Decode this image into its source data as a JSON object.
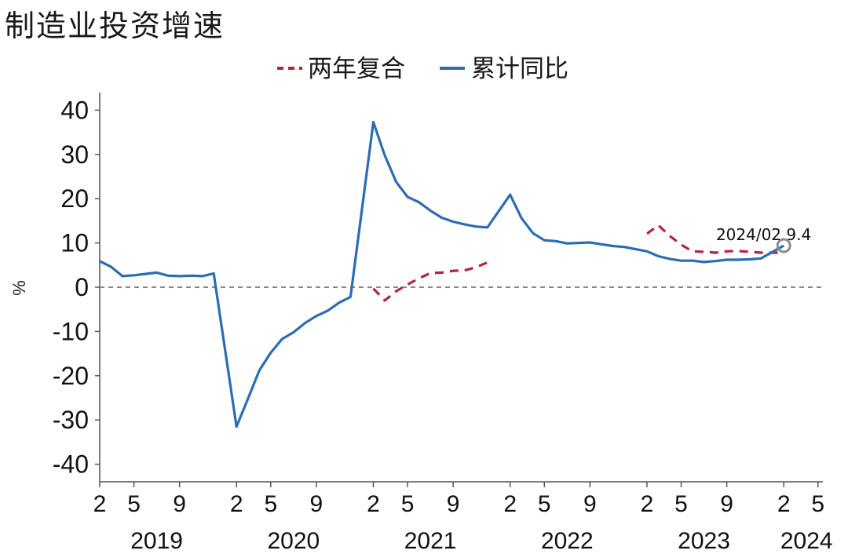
{
  "title": "制造业投资增速",
  "chart_data": {
    "type": "line",
    "ylabel": "%",
    "ylim": [
      -45,
      45
    ],
    "yticks": [
      40,
      30,
      20,
      10,
      0,
      -10,
      -20,
      -30,
      -40
    ],
    "x_tick_labels": [
      "2",
      "5",
      "9",
      "2",
      "5",
      "9",
      "2",
      "5",
      "9",
      "2",
      "5",
      "9",
      "2",
      "5",
      "9",
      "2",
      "5"
    ],
    "x_tick_dates": [
      "2019-02",
      "2019-05",
      "2019-09",
      "2020-02",
      "2020-05",
      "2020-09",
      "2021-02",
      "2021-05",
      "2021-09",
      "2022-02",
      "2022-05",
      "2022-09",
      "2023-02",
      "2023-05",
      "2023-09",
      "2024-02",
      "2024-05"
    ],
    "year_labels": [
      {
        "label": "2019",
        "center": "2019-07"
      },
      {
        "label": "2020",
        "center": "2020-07"
      },
      {
        "label": "2021",
        "center": "2021-07"
      },
      {
        "label": "2022",
        "center": "2022-07"
      },
      {
        "label": "2023",
        "center": "2023-07"
      },
      {
        "label": "2024",
        "center": "2024-04"
      }
    ],
    "reference_line": 0,
    "legend_position": "top",
    "series": [
      {
        "name": "两年复合",
        "style": "dashed",
        "color": "#b5243a",
        "segments": [
          {
            "x": [
              "2021-02",
              "2021-03",
              "2021-04",
              "2021-05",
              "2021-06",
              "2021-07",
              "2021-08",
              "2021-09",
              "2021-10",
              "2021-11",
              "2021-12"
            ],
            "y": [
              -0.3,
              -3.0,
              -0.9,
              0.6,
              2.0,
              3.2,
              3.3,
              3.7,
              3.8,
              4.5,
              5.6
            ]
          },
          {
            "x": [
              "2023-02",
              "2023-03",
              "2023-04",
              "2023-05",
              "2023-06",
              "2023-07",
              "2023-08",
              "2023-09",
              "2023-10",
              "2023-11",
              "2023-12",
              "2024-02"
            ],
            "y": [
              12.1,
              14.0,
              11.6,
              9.6,
              8.1,
              8.0,
              7.8,
              8.1,
              8.2,
              8.0,
              7.8,
              7.8
            ]
          }
        ]
      },
      {
        "name": "累计同比",
        "style": "solid",
        "color": "#2b6db3",
        "x": [
          "2019-02",
          "2019-03",
          "2019-04",
          "2019-05",
          "2019-06",
          "2019-07",
          "2019-08",
          "2019-09",
          "2019-10",
          "2019-11",
          "2019-12",
          "2020-02",
          "2020-03",
          "2020-04",
          "2020-05",
          "2020-06",
          "2020-07",
          "2020-08",
          "2020-09",
          "2020-10",
          "2020-11",
          "2020-12",
          "2021-02",
          "2021-03",
          "2021-04",
          "2021-05",
          "2021-06",
          "2021-07",
          "2021-08",
          "2021-09",
          "2021-10",
          "2021-11",
          "2021-12",
          "2022-02",
          "2022-03",
          "2022-04",
          "2022-05",
          "2022-06",
          "2022-07",
          "2022-08",
          "2022-09",
          "2022-10",
          "2022-11",
          "2022-12",
          "2023-02",
          "2023-03",
          "2023-04",
          "2023-05",
          "2023-06",
          "2023-07",
          "2023-08",
          "2023-09",
          "2023-10",
          "2023-11",
          "2023-12",
          "2024-02"
        ],
        "y": [
          5.9,
          4.6,
          2.5,
          2.7,
          3.0,
          3.3,
          2.6,
          2.5,
          2.6,
          2.5,
          3.1,
          -31.5,
          -25.2,
          -18.8,
          -14.8,
          -11.7,
          -10.2,
          -8.1,
          -6.5,
          -5.3,
          -3.5,
          -2.2,
          37.3,
          29.8,
          23.8,
          20.4,
          19.2,
          17.3,
          15.7,
          14.8,
          14.2,
          13.7,
          13.5,
          20.9,
          15.6,
          12.2,
          10.6,
          10.4,
          9.9,
          10.0,
          10.1,
          9.7,
          9.3,
          9.1,
          8.1,
          7.0,
          6.4,
          6.0,
          6.0,
          5.7,
          5.9,
          6.2,
          6.2,
          6.3,
          6.5,
          9.4
        ]
      }
    ],
    "annotation": {
      "label": "2024/02",
      "value": "9.4",
      "x": "2024-02",
      "y": 9.4,
      "marker": "circle",
      "marker_color": "#8c8c8c"
    }
  }
}
